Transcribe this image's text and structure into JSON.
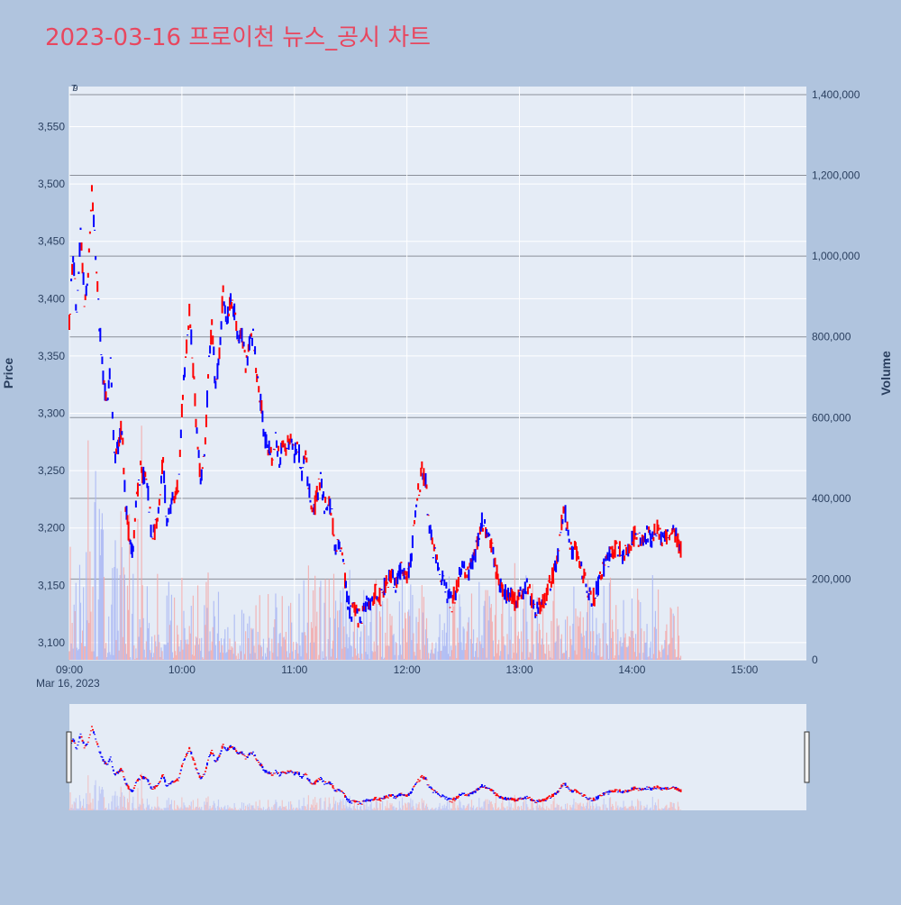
{
  "chart_data": {
    "type": "candlestick",
    "title": "2023-03-16 프로이천 뉴스_공시 차트",
    "ylabel_left": "Price",
    "ylabel_right": "Volume",
    "x_tick_labels": [
      "09:00",
      "10:00",
      "11:00",
      "12:00",
      "13:00",
      "14:00",
      "15:00"
    ],
    "x_date_label": "Mar 16, 2023",
    "x_range": [
      "09:00",
      "15:33"
    ],
    "price_ticks": [
      "3,100",
      "3,150",
      "3,200",
      "3,250",
      "3,300",
      "3,350",
      "3,400",
      "3,450",
      "3,500",
      "3,550"
    ],
    "price_range": [
      3085,
      3585
    ],
    "volume_ticks": [
      "0",
      "200,000",
      "400,000",
      "600,000",
      "800,000",
      "1,000,000",
      "1,200,000",
      "1,400,000"
    ],
    "volume_range": [
      0,
      1420000
    ],
    "news_markers": [
      "7",
      "9"
    ],
    "colors": {
      "up": "#ff0000",
      "down": "#0000ff",
      "background": "#b0c4de",
      "plot": "#e5ecf6",
      "title": "#e8475f"
    },
    "price_path": [
      [
        "09:00",
        3380
      ],
      [
        "09:02",
        3440
      ],
      [
        "09:04",
        3380
      ],
      [
        "09:06",
        3460
      ],
      [
        "09:08",
        3400
      ],
      [
        "09:10",
        3420
      ],
      [
        "09:12",
        3500
      ],
      [
        "09:14",
        3440
      ],
      [
        "09:16",
        3380
      ],
      [
        "09:18",
        3330
      ],
      [
        "09:20",
        3310
      ],
      [
        "09:22",
        3340
      ],
      [
        "09:24",
        3260
      ],
      [
        "09:26",
        3270
      ],
      [
        "09:28",
        3290
      ],
      [
        "09:30",
        3220
      ],
      [
        "09:32",
        3190
      ],
      [
        "09:34",
        3180
      ],
      [
        "09:36",
        3230
      ],
      [
        "09:38",
        3250
      ],
      [
        "09:40",
        3245
      ],
      [
        "09:42",
        3230
      ],
      [
        "09:44",
        3190
      ],
      [
        "09:46",
        3200
      ],
      [
        "09:48",
        3225
      ],
      [
        "09:50",
        3260
      ],
      [
        "09:52",
        3200
      ],
      [
        "09:54",
        3220
      ],
      [
        "09:56",
        3230
      ],
      [
        "09:58",
        3240
      ],
      [
        "10:00",
        3300
      ],
      [
        "10:02",
        3350
      ],
      [
        "10:04",
        3390
      ],
      [
        "10:06",
        3340
      ],
      [
        "10:08",
        3280
      ],
      [
        "10:10",
        3240
      ],
      [
        "10:12",
        3260
      ],
      [
        "10:14",
        3330
      ],
      [
        "10:16",
        3380
      ],
      [
        "10:18",
        3320
      ],
      [
        "10:20",
        3350
      ],
      [
        "10:22",
        3410
      ],
      [
        "10:24",
        3380
      ],
      [
        "10:26",
        3400
      ],
      [
        "10:28",
        3390
      ],
      [
        "10:30",
        3360
      ],
      [
        "10:32",
        3370
      ],
      [
        "10:34",
        3340
      ],
      [
        "10:36",
        3360
      ],
      [
        "10:38",
        3370
      ],
      [
        "10:40",
        3330
      ],
      [
        "10:42",
        3310
      ],
      [
        "10:44",
        3280
      ],
      [
        "10:46",
        3270
      ],
      [
        "10:48",
        3260
      ],
      [
        "10:50",
        3280
      ],
      [
        "10:52",
        3260
      ],
      [
        "10:54",
        3275
      ],
      [
        "10:56",
        3270
      ],
      [
        "10:58",
        3280
      ],
      [
        "11:00",
        3265
      ],
      [
        "11:02",
        3270
      ],
      [
        "11:04",
        3250
      ],
      [
        "11:06",
        3260
      ],
      [
        "11:08",
        3230
      ],
      [
        "11:10",
        3210
      ],
      [
        "11:12",
        3230
      ],
      [
        "11:14",
        3240
      ],
      [
        "11:16",
        3220
      ],
      [
        "11:18",
        3225
      ],
      [
        "11:20",
        3210
      ],
      [
        "11:22",
        3180
      ],
      [
        "11:24",
        3190
      ],
      [
        "11:26",
        3170
      ],
      [
        "11:28",
        3140
      ],
      [
        "11:30",
        3125
      ],
      [
        "11:32",
        3130
      ],
      [
        "11:34",
        3120
      ],
      [
        "11:36",
        3125
      ],
      [
        "11:38",
        3135
      ],
      [
        "11:40",
        3130
      ],
      [
        "11:42",
        3140
      ],
      [
        "11:44",
        3145
      ],
      [
        "11:46",
        3140
      ],
      [
        "11:48",
        3150
      ],
      [
        "11:50",
        3155
      ],
      [
        "11:52",
        3160
      ],
      [
        "11:54",
        3150
      ],
      [
        "11:56",
        3160
      ],
      [
        "11:58",
        3165
      ],
      [
        "12:00",
        3160
      ],
      [
        "12:02",
        3170
      ],
      [
        "12:04",
        3210
      ],
      [
        "12:06",
        3230
      ],
      [
        "12:08",
        3250
      ],
      [
        "12:10",
        3240
      ],
      [
        "12:12",
        3200
      ],
      [
        "12:14",
        3180
      ],
      [
        "12:16",
        3170
      ],
      [
        "12:18",
        3160
      ],
      [
        "12:20",
        3150
      ],
      [
        "12:22",
        3140
      ],
      [
        "12:24",
        3135
      ],
      [
        "12:26",
        3145
      ],
      [
        "12:28",
        3160
      ],
      [
        "12:30",
        3170
      ],
      [
        "12:32",
        3160
      ],
      [
        "12:34",
        3165
      ],
      [
        "12:36",
        3175
      ],
      [
        "12:38",
        3190
      ],
      [
        "12:40",
        3205
      ],
      [
        "12:42",
        3200
      ],
      [
        "12:44",
        3190
      ],
      [
        "12:46",
        3175
      ],
      [
        "12:48",
        3160
      ],
      [
        "12:50",
        3150
      ],
      [
        "12:52",
        3145
      ],
      [
        "12:54",
        3140
      ],
      [
        "12:56",
        3140
      ],
      [
        "12:58",
        3135
      ],
      [
        "13:00",
        3140
      ],
      [
        "13:02",
        3145
      ],
      [
        "13:04",
        3150
      ],
      [
        "13:06",
        3140
      ],
      [
        "13:08",
        3130
      ],
      [
        "13:10",
        3130
      ],
      [
        "13:12",
        3135
      ],
      [
        "13:14",
        3140
      ],
      [
        "13:16",
        3150
      ],
      [
        "13:18",
        3160
      ],
      [
        "13:20",
        3170
      ],
      [
        "13:22",
        3200
      ],
      [
        "13:24",
        3220
      ],
      [
        "13:26",
        3190
      ],
      [
        "13:28",
        3180
      ],
      [
        "13:30",
        3180
      ],
      [
        "13:32",
        3170
      ],
      [
        "13:34",
        3160
      ],
      [
        "13:36",
        3150
      ],
      [
        "13:38",
        3140
      ],
      [
        "13:40",
        3140
      ],
      [
        "13:42",
        3150
      ],
      [
        "13:44",
        3160
      ],
      [
        "13:46",
        3170
      ],
      [
        "13:48",
        3175
      ],
      [
        "13:50",
        3180
      ],
      [
        "13:52",
        3185
      ],
      [
        "13:54",
        3180
      ],
      [
        "13:56",
        3175
      ],
      [
        "13:58",
        3180
      ],
      [
        "14:00",
        3190
      ],
      [
        "14:02",
        3195
      ],
      [
        "14:04",
        3190
      ],
      [
        "14:06",
        3185
      ],
      [
        "14:08",
        3195
      ],
      [
        "14:10",
        3190
      ],
      [
        "14:12",
        3195
      ],
      [
        "14:14",
        3200
      ],
      [
        "14:16",
        3190
      ],
      [
        "14:18",
        3195
      ],
      [
        "14:20",
        3190
      ],
      [
        "14:22",
        3195
      ],
      [
        "14:24",
        3190
      ],
      [
        "14:26",
        3180
      ]
    ],
    "price_path_note_removed": true
  }
}
